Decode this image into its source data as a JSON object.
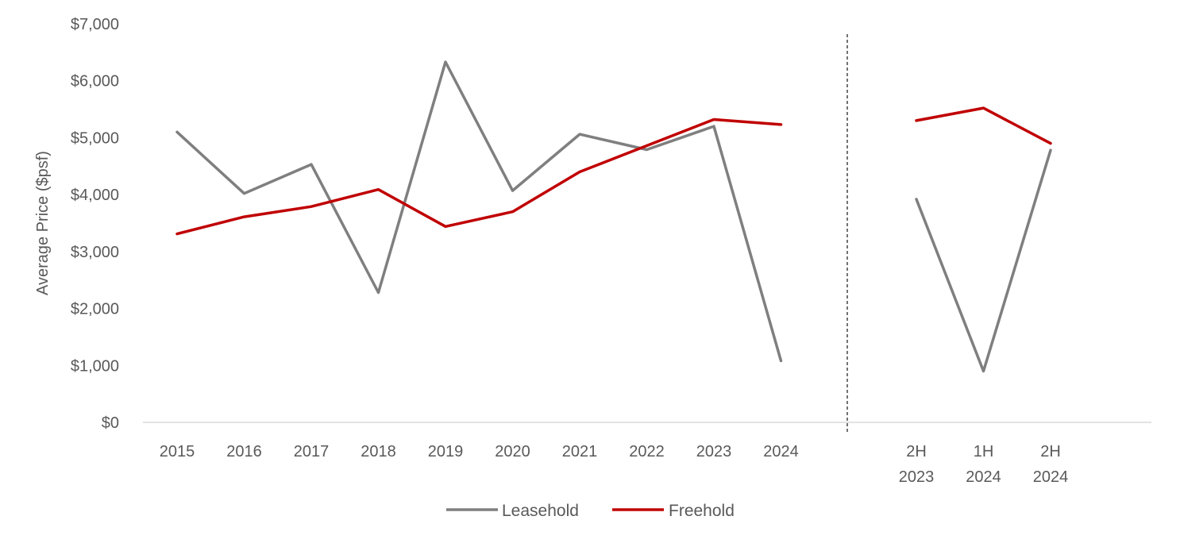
{
  "chart_data": {
    "type": "line",
    "ylabel": "Average Price ($psf)",
    "ylim": [
      0,
      7000
    ],
    "yticks": [
      "$0",
      "$1,000",
      "$2,000",
      "$3,000",
      "$4,000",
      "$5,000",
      "$6,000",
      "$7,000"
    ],
    "ytick_values": [
      0,
      1000,
      2000,
      3000,
      4000,
      5000,
      6000,
      7000
    ],
    "groups": [
      {
        "name": "annual",
        "categories": [
          "2015",
          "2016",
          "2017",
          "2018",
          "2019",
          "2020",
          "2021",
          "2022",
          "2023",
          "2024"
        ],
        "series": [
          {
            "name": "Leasehold",
            "values": [
              5100,
              4020,
              4530,
              2280,
              6330,
              4070,
              5060,
              4790,
              5200,
              1080
            ]
          },
          {
            "name": "Freehold",
            "values": [
              3310,
              3610,
              3790,
              4090,
              3440,
              3700,
              4400,
              4860,
              5320,
              5230
            ]
          }
        ]
      },
      {
        "name": "half-year",
        "categories": [
          [
            "2H",
            "2023"
          ],
          [
            "1H",
            "2024"
          ],
          [
            "2H",
            "2024"
          ]
        ],
        "series": [
          {
            "name": "Leasehold",
            "values": [
              3920,
              900,
              4780
            ]
          },
          {
            "name": "Freehold",
            "values": [
              5300,
              5520,
              4900
            ]
          }
        ]
      }
    ],
    "legend": [
      {
        "name": "Leasehold",
        "color": "#7f7f7f"
      },
      {
        "name": "Freehold",
        "color": "#c00000"
      }
    ],
    "legend_position": "bottom",
    "grid": false
  }
}
